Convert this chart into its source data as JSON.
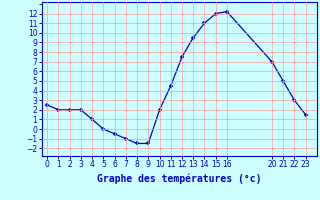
{
  "hours": [
    0,
    1,
    2,
    3,
    4,
    5,
    6,
    7,
    8,
    9,
    10,
    11,
    12,
    13,
    14,
    15,
    16,
    20,
    21,
    22,
    23
  ],
  "temps": [
    2.5,
    2.0,
    2.0,
    2.0,
    1.0,
    0.0,
    -0.5,
    -1.0,
    -1.5,
    -1.5,
    2.0,
    4.5,
    7.5,
    9.5,
    11.0,
    12.0,
    12.2,
    7.0,
    5.0,
    3.0,
    1.5
  ],
  "yticks": [
    -2,
    -1,
    0,
    1,
    2,
    3,
    4,
    5,
    6,
    7,
    8,
    9,
    10,
    11,
    12
  ],
  "xtick_vals": [
    0,
    1,
    2,
    3,
    4,
    5,
    6,
    7,
    8,
    9,
    10,
    11,
    12,
    13,
    14,
    15,
    16,
    20,
    21,
    22,
    23
  ],
  "xtick_labels": [
    "0",
    "1",
    "2",
    "3",
    "4",
    "5",
    "6",
    "7",
    "8",
    "9",
    "10",
    "11",
    "12",
    "13",
    "14",
    "15",
    "16",
    "20",
    "21",
    "22",
    "23"
  ],
  "ylim": [
    -2.8,
    13.2
  ],
  "xlim": [
    -0.5,
    24.0
  ],
  "line_color": "#0000cc",
  "marker": "+",
  "bg_color": "#ccffff",
  "grid_color": "#ff9999",
  "grid_color_minor": "#ccccff",
  "xlabel": "Graphe des températures (°c)",
  "xlabel_color": "#0000cc",
  "tick_color": "#0000cc"
}
